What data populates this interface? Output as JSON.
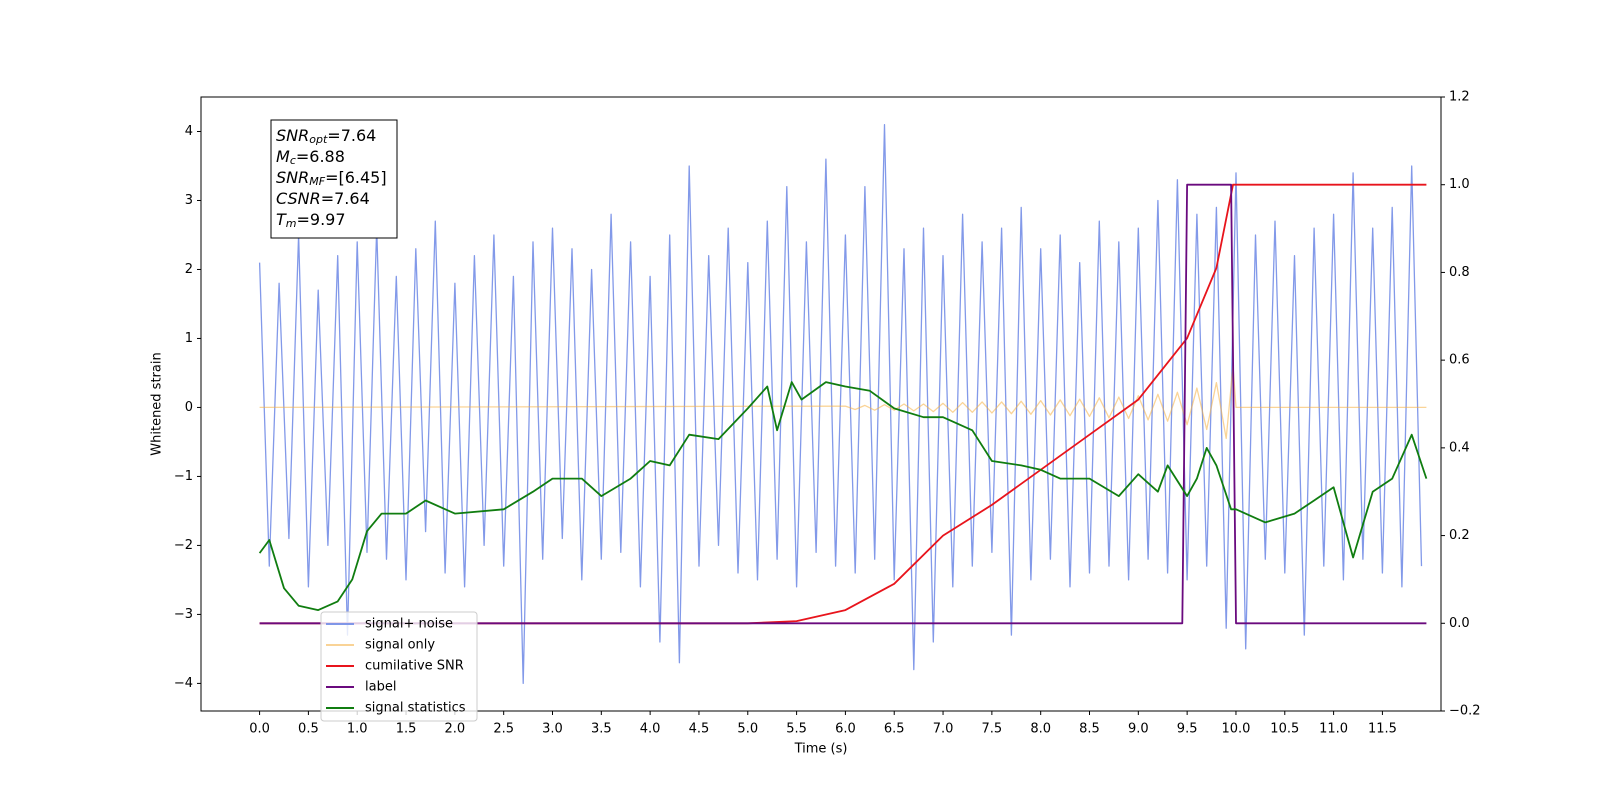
{
  "chart_data": {
    "type": "line",
    "xlabel": "Time (s)",
    "ylabel": "Whitened strain",
    "xlim": [
      -0.6,
      12.1
    ],
    "ylim": [
      -4.4,
      4.5
    ],
    "y2lim": [
      -0.2,
      1.2
    ],
    "xticks": [
      {
        "value": 0,
        "label": "0.0"
      },
      0.5,
      {
        "value": 1,
        "label": "1.0"
      },
      1.5,
      {
        "value": 2,
        "label": "2.0"
      },
      2.5,
      {
        "value": 3,
        "label": "3.0"
      },
      3.5,
      {
        "value": 4,
        "label": "4.0"
      },
      4.5,
      {
        "value": 5,
        "label": "5.0"
      },
      5.5,
      {
        "value": 6,
        "label": "6.0"
      },
      6.5,
      {
        "value": 7,
        "label": "7.0"
      },
      7.5,
      {
        "value": 8,
        "label": "8.0"
      },
      8.5,
      {
        "value": 9,
        "label": "9.0"
      },
      9.5,
      {
        "value": 10,
        "label": "10.0"
      },
      10.5,
      {
        "value": 11,
        "label": "11.0"
      },
      11.5
    ],
    "yticks": [
      {
        "value": -4,
        "label": "−4"
      },
      {
        "value": -3,
        "label": "−3"
      },
      {
        "value": -2,
        "label": "−2"
      },
      {
        "value": -1,
        "label": "−1"
      },
      0,
      1,
      2,
      3,
      4
    ],
    "y2ticks": [
      {
        "value": -0.2,
        "label": "−0.2"
      },
      {
        "value": 0,
        "label": "0.0"
      },
      0.2,
      0.4,
      0.6,
      0.8,
      {
        "value": 1,
        "label": "1.0"
      },
      1.2
    ],
    "annotations": [
      {
        "main": "SNR",
        "sub": "opt",
        "rest": "=7.64"
      },
      {
        "main": "M",
        "sub": "c",
        "rest": "=6.88"
      },
      {
        "main": "SNR",
        "sub": "MF",
        "rest": "=[6.45]"
      },
      {
        "main": "CSNR",
        "rest": "=7.64"
      },
      {
        "main": "T",
        "sub": "m",
        "rest": "=9.97"
      }
    ],
    "series": [
      {
        "name": "signal+ noise",
        "color": "#7b93e8",
        "axis": "y",
        "x": [
          0,
          0.1,
          0.2,
          0.3,
          0.4,
          0.5,
          0.6,
          0.7,
          0.8,
          0.9,
          1,
          1.1,
          1.2,
          1.3,
          1.4,
          1.5,
          1.6,
          1.7,
          1.8,
          1.9,
          2,
          2.1,
          2.2,
          2.3,
          2.4,
          2.5,
          2.6,
          2.7,
          2.8,
          2.9,
          3,
          3.1,
          3.2,
          3.3,
          3.4,
          3.5,
          3.6,
          3.7,
          3.8,
          3.9,
          4,
          4.1,
          4.2,
          4.3,
          4.4,
          4.5,
          4.6,
          4.7,
          4.8,
          4.9,
          5,
          5.1,
          5.2,
          5.3,
          5.4,
          5.5,
          5.6,
          5.7,
          5.8,
          5.9,
          6,
          6.1,
          6.2,
          6.3,
          6.4,
          6.5,
          6.6,
          6.7,
          6.8,
          6.9,
          7,
          7.1,
          7.2,
          7.3,
          7.4,
          7.5,
          7.6,
          7.7,
          7.8,
          7.9,
          8,
          8.1,
          8.2,
          8.3,
          8.4,
          8.5,
          8.6,
          8.7,
          8.8,
          8.9,
          9,
          9.1,
          9.2,
          9.3,
          9.4,
          9.5,
          9.6,
          9.7,
          9.8,
          9.9,
          10,
          10.1,
          10.2,
          10.3,
          10.4,
          10.5,
          10.6,
          10.7,
          10.8,
          10.9,
          11,
          11.1,
          11.2,
          11.3,
          11.4,
          11.5,
          11.6,
          11.7,
          11.8,
          11.9
        ],
        "values": [
          2.1,
          -2.3,
          1.8,
          -1.9,
          2.5,
          -2.6,
          1.7,
          -2.0,
          2.2,
          -3.3,
          2.4,
          -2.1,
          2.6,
          -2.2,
          1.9,
          -2.5,
          2.3,
          -1.8,
          2.7,
          -2.4,
          1.8,
          -2.6,
          2.2,
          -2.0,
          2.5,
          -2.3,
          1.9,
          -4.0,
          2.4,
          -2.2,
          2.6,
          -1.9,
          2.3,
          -2.5,
          2.0,
          -2.2,
          2.8,
          -2.1,
          2.4,
          -2.6,
          1.9,
          -3.4,
          2.5,
          -3.7,
          3.5,
          -2.3,
          2.2,
          -2.0,
          2.6,
          -2.4,
          2.1,
          -2.5,
          2.7,
          -2.2,
          3.2,
          -2.6,
          2.4,
          -2.1,
          3.6,
          -2.3,
          2.5,
          -2.4,
          3.2,
          -2.2,
          4.1,
          -2.5,
          2.3,
          -3.8,
          2.6,
          -3.4,
          2.2,
          -2.6,
          2.8,
          -2.3,
          2.4,
          -2.1,
          2.6,
          -3.3,
          2.9,
          -2.5,
          2.3,
          -2.2,
          2.5,
          -2.6,
          2.1,
          -2.4,
          2.7,
          -2.3,
          2.4,
          -2.5,
          2.6,
          -2.2,
          3.0,
          -2.4,
          3.3,
          -2.5,
          2.8,
          -2.3,
          2.9,
          -3.2,
          3.4,
          -3.5,
          2.5,
          -2.2,
          2.7,
          -2.4,
          2.2,
          -3.3,
          2.6,
          -2.3,
          2.8,
          -2.5,
          3.4,
          -2.2,
          2.6,
          -2.4,
          2.9,
          -2.6,
          3.5,
          -2.3
        ]
      },
      {
        "name": "signal only",
        "color": "#f5b041",
        "axis": "y",
        "x": [
          0,
          6,
          6.1,
          6.2,
          6.3,
          6.4,
          6.5,
          6.6,
          6.7,
          6.8,
          6.9,
          7,
          7.1,
          7.2,
          7.3,
          7.4,
          7.5,
          7.6,
          7.7,
          7.8,
          7.9,
          8,
          8.1,
          8.2,
          8.3,
          8.4,
          8.5,
          8.6,
          8.7,
          8.8,
          8.9,
          9,
          9.1,
          9.2,
          9.3,
          9.4,
          9.5,
          9.6,
          9.7,
          9.8,
          9.9,
          9.97,
          10,
          11.95
        ],
        "values": [
          0,
          0.02,
          -0.03,
          0.03,
          -0.04,
          0.04,
          -0.04,
          0.05,
          -0.05,
          0.05,
          -0.06,
          0.06,
          -0.07,
          0.07,
          -0.07,
          0.08,
          -0.08,
          0.08,
          -0.09,
          0.09,
          -0.1,
          0.1,
          -0.11,
          0.11,
          -0.12,
          0.12,
          -0.13,
          0.14,
          -0.15,
          0.15,
          -0.16,
          0.17,
          -0.18,
          0.19,
          -0.2,
          0.22,
          -0.25,
          0.28,
          -0.32,
          0.36,
          -0.45,
          0.6,
          0,
          0
        ]
      },
      {
        "name": "cumilative SNR",
        "color": "#e8141c",
        "axis": "y2",
        "x": [
          0,
          5,
          5.5,
          6,
          6.5,
          7,
          7.5,
          8,
          8.5,
          9,
          9.5,
          9.8,
          9.97,
          11.95
        ],
        "values": [
          0,
          0,
          0.005,
          0.03,
          0.09,
          0.2,
          0.27,
          0.35,
          0.43,
          0.51,
          0.65,
          0.81,
          1,
          1
        ]
      },
      {
        "name": "label",
        "color": "#6a0a7e",
        "axis": "y2",
        "x": [
          0,
          9.45,
          9.5,
          9.95,
          10,
          11.95
        ],
        "values": [
          0,
          0,
          1,
          1,
          0,
          0
        ]
      },
      {
        "name": "signal statistics",
        "color": "#107d10",
        "axis": "y2",
        "x": [
          0,
          0.1,
          0.25,
          0.4,
          0.6,
          0.8,
          0.95,
          1.1,
          1.25,
          1.5,
          1.7,
          2,
          2.5,
          2.8,
          3,
          3.3,
          3.5,
          3.8,
          4,
          4.2,
          4.4,
          4.7,
          5,
          5.2,
          5.3,
          5.45,
          5.55,
          5.8,
          6,
          6.25,
          6.5,
          6.8,
          7,
          7.3,
          7.5,
          7.8,
          8,
          8.2,
          8.5,
          8.8,
          9,
          9.2,
          9.3,
          9.5,
          9.6,
          9.7,
          9.8,
          9.95,
          10,
          10.3,
          10.6,
          10.8,
          11,
          11.2,
          11.4,
          11.6,
          11.8,
          11.95
        ],
        "values": [
          0.16,
          0.19,
          0.08,
          0.04,
          0.03,
          0.05,
          0.1,
          0.21,
          0.25,
          0.25,
          0.28,
          0.25,
          0.26,
          0.3,
          0.33,
          0.33,
          0.29,
          0.33,
          0.37,
          0.36,
          0.43,
          0.42,
          0.49,
          0.54,
          0.44,
          0.55,
          0.51,
          0.55,
          0.54,
          0.53,
          0.49,
          0.47,
          0.47,
          0.44,
          0.37,
          0.36,
          0.35,
          0.33,
          0.33,
          0.29,
          0.34,
          0.3,
          0.36,
          0.29,
          0.33,
          0.4,
          0.36,
          0.26,
          0.26,
          0.23,
          0.25,
          0.28,
          0.31,
          0.15,
          0.3,
          0.33,
          0.43,
          0.33
        ]
      }
    ]
  }
}
